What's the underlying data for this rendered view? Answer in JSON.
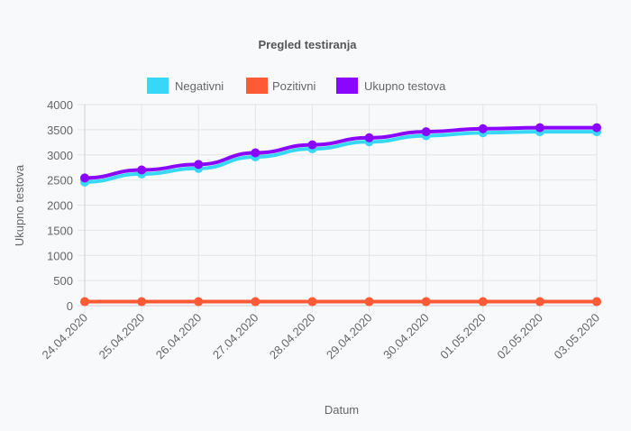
{
  "chart_data": {
    "type": "line",
    "title": "Pregled testiranja",
    "xlabel": "Datum",
    "ylabel": "Ukupno testova",
    "categories": [
      "24.04.2020",
      "25.04.2020",
      "26.04.2020",
      "27.04.2020",
      "28.04.2020",
      "29.04.2020",
      "30.04.2020",
      "01.05.2020",
      "02.05.2020",
      "03.05.2020"
    ],
    "ylim": [
      0,
      4000
    ],
    "yticks": [
      "0",
      "500",
      "1000",
      "1500",
      "2000",
      "2500",
      "3000",
      "3500",
      "4000"
    ],
    "grid": true,
    "legend_position": "top",
    "series": [
      {
        "name": "Negativni",
        "color": "#36d7f7",
        "values": [
          2460,
          2620,
          2730,
          2960,
          3120,
          3260,
          3380,
          3440,
          3460,
          3460
        ]
      },
      {
        "name": "Pozitivni",
        "color": "#ff5a36",
        "values": [
          80,
          80,
          80,
          80,
          80,
          80,
          80,
          80,
          80,
          80
        ]
      },
      {
        "name": "Ukupno testova",
        "color": "#8a06ff",
        "values": [
          2540,
          2700,
          2810,
          3040,
          3200,
          3340,
          3460,
          3520,
          3540,
          3540
        ]
      }
    ]
  }
}
